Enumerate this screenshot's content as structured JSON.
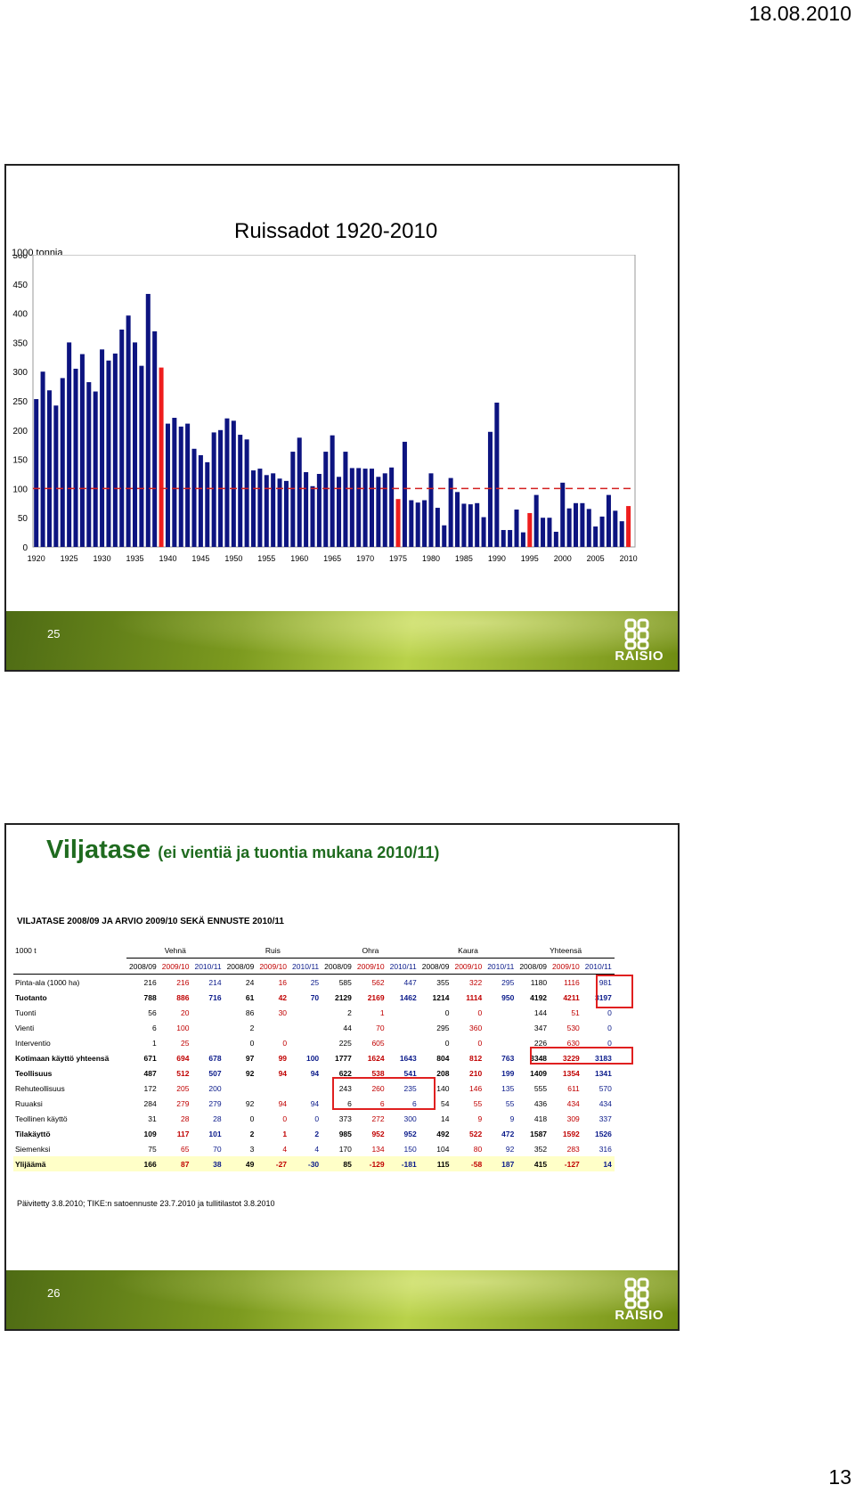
{
  "page": {
    "date": "18.08.2010",
    "number": "13"
  },
  "slide1": {
    "title": "Ruissadot 1920-2010",
    "unit": "1000 tonnia",
    "slide_number": "25",
    "logo_text": "RAISIO"
  },
  "slide2": {
    "title": "Viljatase",
    "subtitle": "(ei vientiä ja tuontia mukana 2010/11)",
    "table_title": "VILJATASE 2008/09 JA ARVIO 2009/10 SEKÄ ENNUSTE 2010/11",
    "unit_label": "1000 t",
    "groups": [
      "Vehnä",
      "Ruis",
      "Ohra",
      "Kaura",
      "Yhteensä"
    ],
    "years": [
      "2008/09",
      "2009/10",
      "2010/11"
    ],
    "rows": [
      {
        "label": "Pinta-ala (1000 ha)",
        "style": "",
        "values": [
          "216",
          "216",
          "214",
          "24",
          "16",
          "25",
          "585",
          "562",
          "447",
          "355",
          "322",
          "295",
          "1180",
          "1116",
          "981"
        ]
      },
      {
        "label": "Tuotanto",
        "style": "bold",
        "values": [
          "788",
          "886",
          "716",
          "61",
          "42",
          "70",
          "2129",
          "2169",
          "1462",
          "1214",
          "1114",
          "950",
          "4192",
          "4211",
          "3197"
        ]
      },
      {
        "label": "Tuonti",
        "style": "",
        "values": [
          "56",
          "20",
          "",
          "86",
          "30",
          "",
          "2",
          "1",
          "",
          "0",
          "0",
          "",
          "144",
          "51",
          "0"
        ]
      },
      {
        "label": "Vienti",
        "style": "",
        "values": [
          "6",
          "100",
          "",
          "2",
          "",
          "",
          "44",
          "70",
          "",
          "295",
          "360",
          "",
          "347",
          "530",
          "0"
        ]
      },
      {
        "label": "Interventio",
        "style": "",
        "values": [
          "1",
          "25",
          "",
          "0",
          "0",
          "",
          "225",
          "605",
          "",
          "0",
          "0",
          "",
          "226",
          "630",
          "0"
        ]
      },
      {
        "label": "Kotimaan käyttö yhteensä",
        "style": "bold",
        "values": [
          "671",
          "694",
          "678",
          "97",
          "99",
          "100",
          "1777",
          "1624",
          "1643",
          "804",
          "812",
          "763",
          "3348",
          "3229",
          "3183"
        ]
      },
      {
        "label": "Teollisuus",
        "style": "bold",
        "values": [
          "487",
          "512",
          "507",
          "92",
          "94",
          "94",
          "622",
          "538",
          "541",
          "208",
          "210",
          "199",
          "1409",
          "1354",
          "1341"
        ]
      },
      {
        "label": "Rehuteollisuus",
        "style": "sub",
        "values": [
          "172",
          "205",
          "200",
          "",
          "",
          "",
          "243",
          "260",
          "235",
          "140",
          "146",
          "135",
          "555",
          "611",
          "570"
        ]
      },
      {
        "label": "Ruuaksi",
        "style": "sub",
        "values": [
          "284",
          "279",
          "279",
          "92",
          "94",
          "94",
          "6",
          "6",
          "6",
          "54",
          "55",
          "55",
          "436",
          "434",
          "434"
        ]
      },
      {
        "label": "Teollinen käyttö",
        "style": "sub",
        "values": [
          "31",
          "28",
          "28",
          "0",
          "0",
          "0",
          "373",
          "272",
          "300",
          "14",
          "9",
          "9",
          "418",
          "309",
          "337"
        ]
      },
      {
        "label": "Tilakäyttö",
        "style": "bold",
        "values": [
          "109",
          "117",
          "101",
          "2",
          "1",
          "2",
          "985",
          "952",
          "952",
          "492",
          "522",
          "472",
          "1587",
          "1592",
          "1526"
        ]
      },
      {
        "label": "Siemenksi",
        "style": "",
        "values": [
          "75",
          "65",
          "70",
          "3",
          "4",
          "4",
          "170",
          "134",
          "150",
          "104",
          "80",
          "92",
          "352",
          "283",
          "316"
        ]
      },
      {
        "label": "Ylijäämä",
        "style": "bold hl",
        "values": [
          "166",
          "87",
          "38",
          "49",
          "-27",
          "-30",
          "85",
          "-129",
          "-181",
          "115",
          "-58",
          "187",
          "415",
          "-127",
          "14"
        ]
      }
    ],
    "updated": "Päivitetty 3.8.2010;  TIKE:n satoennuste  23.7.2010  ja tullitilastot 3.8.2010",
    "slide_number": "26",
    "logo_text": "RAISIO",
    "colors": {
      "2008/09": "#000000",
      "2009/10": "#c00000",
      "2010/11": "#0a1a8a"
    }
  },
  "chart_data": {
    "type": "bar",
    "title": "Ruissadot 1920-2010",
    "ylabel": "1000 tonnia",
    "ylim": [
      0,
      500
    ],
    "yticks": [
      0,
      50,
      100,
      150,
      200,
      250,
      300,
      350,
      400,
      450,
      500
    ],
    "xticks": [
      "1920",
      "1925",
      "1930",
      "1935",
      "1940",
      "1945",
      "1950",
      "1955",
      "1960",
      "1965",
      "1970",
      "1975",
      "1980",
      "1985",
      "1990",
      "1995",
      "2000",
      "2005",
      "2010"
    ],
    "x": [
      1920,
      1921,
      1922,
      1923,
      1924,
      1925,
      1926,
      1927,
      1928,
      1929,
      1930,
      1931,
      1932,
      1933,
      1934,
      1935,
      1936,
      1937,
      1938,
      1939,
      1940,
      1941,
      1942,
      1943,
      1944,
      1945,
      1946,
      1947,
      1948,
      1949,
      1950,
      1951,
      1952,
      1953,
      1954,
      1955,
      1956,
      1957,
      1958,
      1959,
      1960,
      1961,
      1962,
      1963,
      1964,
      1965,
      1966,
      1967,
      1968,
      1969,
      1970,
      1971,
      1972,
      1973,
      1974,
      1975,
      1976,
      1977,
      1978,
      1979,
      1980,
      1981,
      1982,
      1983,
      1984,
      1985,
      1986,
      1987,
      1988,
      1989,
      1990,
      1991,
      1992,
      1993,
      1994,
      1995,
      1996,
      1997,
      1998,
      1999,
      2000,
      2001,
      2002,
      2003,
      2004,
      2005,
      2006,
      2007,
      2008,
      2009,
      2010
    ],
    "values": [
      253,
      300,
      268,
      242,
      289,
      350,
      305,
      330,
      282,
      266,
      338,
      319,
      331,
      372,
      396,
      350,
      310,
      433,
      369,
      307,
      211,
      221,
      206,
      211,
      168,
      157,
      145,
      196,
      200,
      220,
      216,
      192,
      184,
      131,
      134,
      123,
      126,
      117,
      113,
      163,
      187,
      128,
      104,
      125,
      163,
      191,
      120,
      163,
      135,
      135,
      134,
      134,
      120,
      126,
      136,
      82,
      180,
      80,
      76,
      80,
      126,
      67,
      37,
      118,
      94,
      74,
      73,
      75,
      51,
      197,
      247,
      29,
      29,
      64,
      25,
      58,
      89,
      50,
      50,
      26,
      110,
      66,
      75,
      75,
      65,
      35,
      52,
      89,
      62,
      44,
      70
    ],
    "highlight_years": [
      1939,
      1975,
      1995,
      2010
    ],
    "bar_color": "#0d1480",
    "highlight_color": "#ee1d1d",
    "reference_line": {
      "value": 100,
      "color": "#d42020",
      "style": "dashed"
    }
  }
}
